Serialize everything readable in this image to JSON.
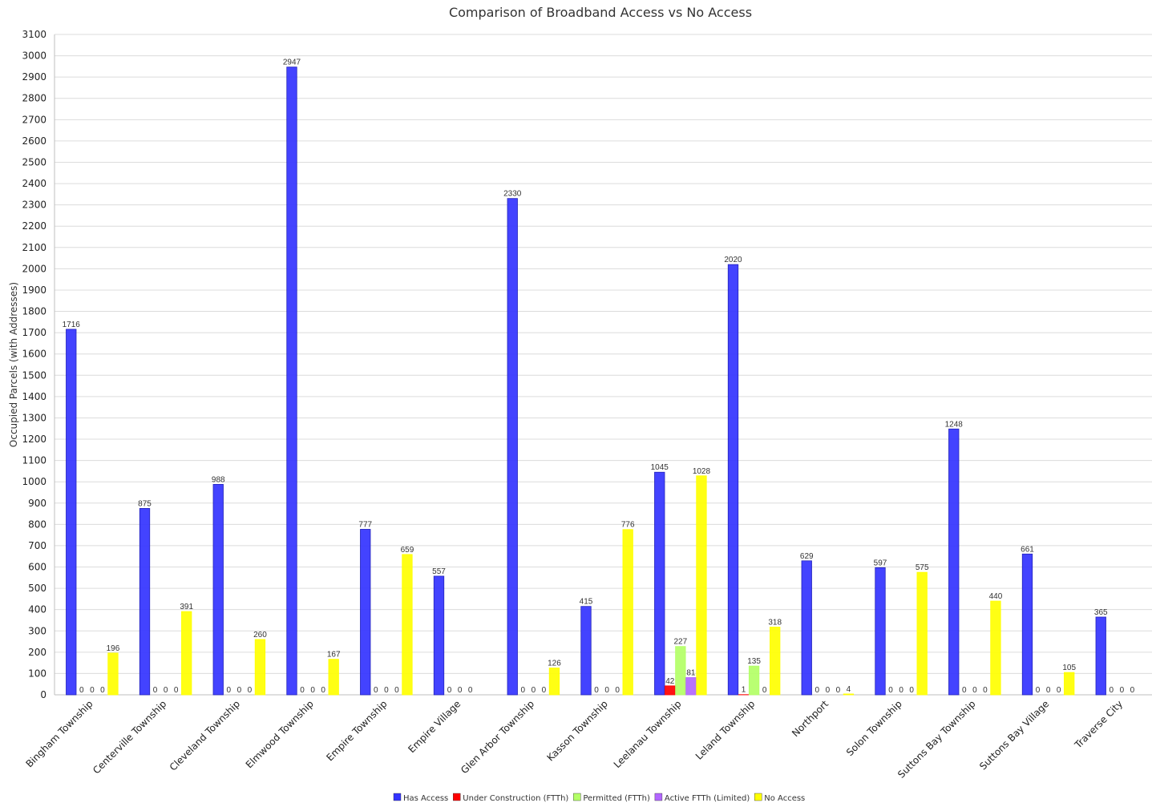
{
  "chart_data": {
    "type": "bar",
    "title": "Comparison of Broadband Access vs No Access",
    "ylabel": "Occupied Parcels (with Addresses)",
    "xlabel": "",
    "ylim": [
      0,
      3100
    ],
    "ytick_step": 100,
    "grid": true,
    "legend_position": "bottom",
    "categories": [
      "Bingham Township",
      "Centerville Township",
      "Cleveland Township",
      "Elmwood Township",
      "Empire Township",
      "Empire Village",
      "Glen Arbor Township",
      "Kasson Township",
      "Leelanau Township",
      "Leland Township",
      "Northport",
      "Solon Township",
      "Suttons Bay Township",
      "Suttons Bay Village",
      "Traverse City"
    ],
    "series": [
      {
        "name": "Has Access",
        "color": "#3333ff",
        "values": [
          1716,
          875,
          988,
          2947,
          777,
          557,
          2330,
          415,
          1045,
          2020,
          629,
          597,
          1248,
          661,
          365
        ]
      },
      {
        "name": "Under Construction (FTTh)",
        "color": "#ff0000",
        "values": [
          0,
          0,
          0,
          0,
          0,
          0,
          0,
          0,
          42,
          1,
          0,
          0,
          0,
          0,
          0
        ]
      },
      {
        "name": "Permitted (FTTh)",
        "color": "#b3ff66",
        "values": [
          0,
          0,
          0,
          0,
          0,
          0,
          0,
          0,
          227,
          135,
          0,
          0,
          0,
          0,
          0
        ]
      },
      {
        "name": "Active FTTh (Limited)",
        "color": "#b266ff",
        "values": [
          0,
          0,
          0,
          0,
          0,
          0,
          0,
          0,
          81,
          0,
          0,
          0,
          0,
          0,
          0
        ]
      },
      {
        "name": "No Access",
        "color": "#ffff00",
        "values": [
          196,
          391,
          260,
          167,
          659,
          null,
          126,
          776,
          1028,
          318,
          4,
          575,
          440,
          105,
          null
        ]
      }
    ],
    "value_labels_visible": true
  }
}
